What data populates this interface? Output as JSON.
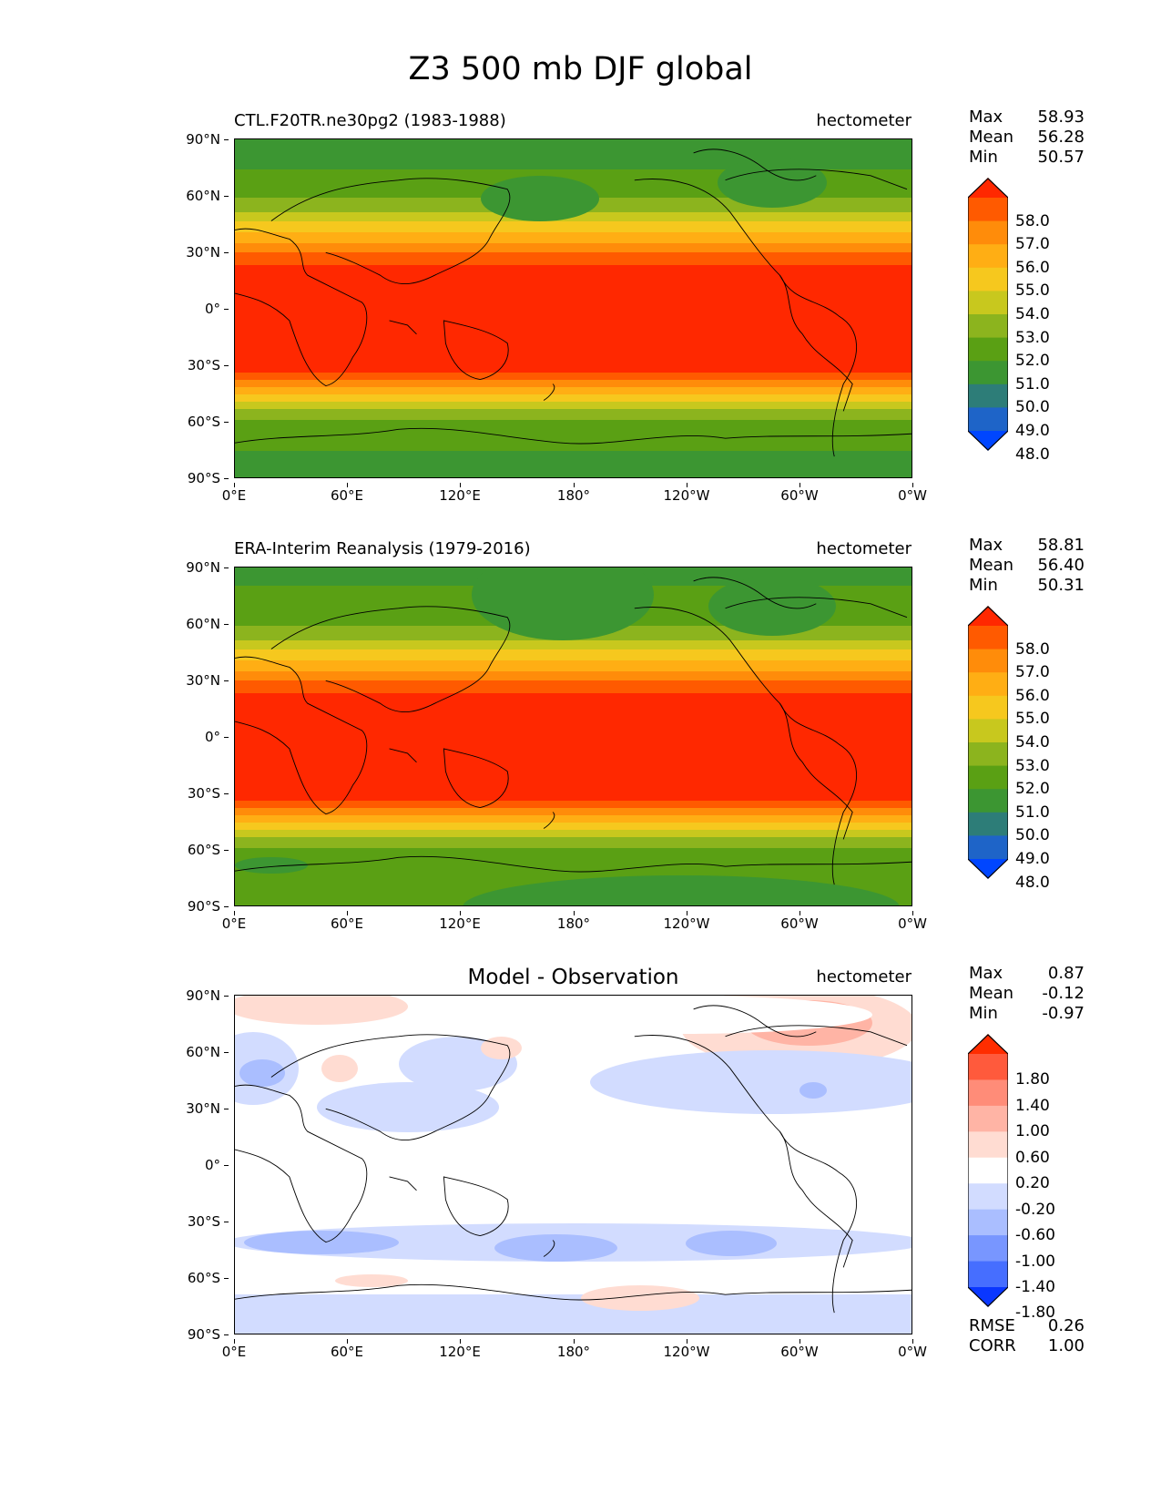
{
  "figure_title": "Z3 500 mb DJF global",
  "x_ticks": [
    "0°E",
    "60°E",
    "120°E",
    "180°",
    "120°W",
    "60°W",
    "0°W"
  ],
  "y_ticks": [
    "90°N",
    "60°N",
    "30°N",
    "0°",
    "30°S",
    "60°S",
    "90°S"
  ],
  "panels": [
    {
      "id": "model",
      "title": "CTL.F20TR.ne30pg2 (1983-1988)",
      "units": "hectometer",
      "stats": [
        {
          "label": "Max",
          "value": "58.93"
        },
        {
          "label": "Mean",
          "value": "56.28"
        },
        {
          "label": "Min",
          "value": "50.57"
        }
      ],
      "colorbar": {
        "labels": [
          "58.0",
          "57.0",
          "56.0",
          "55.0",
          "54.0",
          "53.0",
          "52.0",
          "51.0",
          "50.0",
          "49.0",
          "48.0"
        ],
        "colors": [
          "#ff2800",
          "#ff5a00",
          "#ff8c0a",
          "#ffae14",
          "#f6c81e",
          "#c8c81e",
          "#8cb41e",
          "#5aa014",
          "#3c9632",
          "#2d7d78",
          "#1e64c8",
          "#0046ff"
        ]
      }
    },
    {
      "id": "obs",
      "title": "ERA-Interim Reanalysis (1979-2016)",
      "units": "hectometer",
      "stats": [
        {
          "label": "Max",
          "value": "58.81"
        },
        {
          "label": "Mean",
          "value": "56.40"
        },
        {
          "label": "Min",
          "value": "50.31"
        }
      ],
      "colorbar": {
        "labels": [
          "58.0",
          "57.0",
          "56.0",
          "55.0",
          "54.0",
          "53.0",
          "52.0",
          "51.0",
          "50.0",
          "49.0",
          "48.0"
        ],
        "colors": [
          "#ff2800",
          "#ff5a00",
          "#ff8c0a",
          "#ffae14",
          "#f6c81e",
          "#c8c81e",
          "#8cb41e",
          "#5aa014",
          "#3c9632",
          "#2d7d78",
          "#1e64c8",
          "#0046ff"
        ]
      }
    },
    {
      "id": "diff",
      "title": "Model - Observation",
      "units": "hectometer",
      "stats": [
        {
          "label": "Max",
          "value": "0.87"
        },
        {
          "label": "Mean",
          "value": "-0.12"
        },
        {
          "label": "Min",
          "value": "-0.97"
        }
      ],
      "colorbar": {
        "labels": [
          "1.80",
          "1.40",
          "1.00",
          "0.60",
          "0.20",
          "-0.20",
          "-0.60",
          "-1.00",
          "-1.40",
          "-1.80"
        ],
        "colors": [
          "#ff2d00",
          "#ff5a3c",
          "#ff8c78",
          "#ffb4a5",
          "#ffdcd2",
          "#ffffff",
          "#d2dcff",
          "#aabeff",
          "#7896ff",
          "#466eff",
          "#0a37ff"
        ]
      },
      "metrics": [
        {
          "label": "RMSE",
          "value": "0.26"
        },
        {
          "label": "CORR",
          "value": "1.00"
        }
      ]
    }
  ],
  "chart_data": [
    {
      "type": "heatmap",
      "title": "CTL.F20TR.ne30pg2 (1983-1988)",
      "variable": "Z3 500 mb DJF",
      "units": "hectometer",
      "x_range": [
        0,
        360
      ],
      "y_range": [
        -90,
        90
      ],
      "lat_profile": [
        {
          "lat": 90,
          "value": 50.8
        },
        {
          "lat": 75,
          "value": 51.5
        },
        {
          "lat": 60,
          "value": 52.0
        },
        {
          "lat": 50,
          "value": 54.0
        },
        {
          "lat": 40,
          "value": 55.5
        },
        {
          "lat": 30,
          "value": 57.0
        },
        {
          "lat": 20,
          "value": 58.2
        },
        {
          "lat": 0,
          "value": 58.6
        },
        {
          "lat": -20,
          "value": 58.5
        },
        {
          "lat": -35,
          "value": 57.5
        },
        {
          "lat": -45,
          "value": 55.0
        },
        {
          "lat": -55,
          "value": 52.5
        },
        {
          "lat": -65,
          "value": 51.0
        },
        {
          "lat": -90,
          "value": 50.8
        }
      ],
      "max": 58.93,
      "mean": 56.28,
      "min": 50.57
    },
    {
      "type": "heatmap",
      "title": "ERA-Interim Reanalysis (1979-2016)",
      "variable": "Z3 500 mb DJF",
      "units": "hectometer",
      "x_range": [
        0,
        360
      ],
      "y_range": [
        -90,
        90
      ],
      "lat_profile": [
        {
          "lat": 90,
          "value": 50.5
        },
        {
          "lat": 75,
          "value": 51.5
        },
        {
          "lat": 60,
          "value": 52.0
        },
        {
          "lat": 50,
          "value": 54.0
        },
        {
          "lat": 40,
          "value": 55.5
        },
        {
          "lat": 30,
          "value": 57.0
        },
        {
          "lat": 20,
          "value": 58.2
        },
        {
          "lat": 0,
          "value": 58.6
        },
        {
          "lat": -20,
          "value": 58.5
        },
        {
          "lat": -35,
          "value": 57.5
        },
        {
          "lat": -45,
          "value": 55.0
        },
        {
          "lat": -55,
          "value": 52.5
        },
        {
          "lat": -65,
          "value": 51.5
        },
        {
          "lat": -90,
          "value": 51.0
        }
      ],
      "max": 58.81,
      "mean": 56.4,
      "min": 50.31
    },
    {
      "type": "heatmap",
      "title": "Model - Observation",
      "units": "hectometer",
      "x_range": [
        0,
        360
      ],
      "y_range": [
        -90,
        90
      ],
      "features": [
        {
          "region": "Arctic 0-80°E",
          "value": 0.4
        },
        {
          "region": "N. Atlantic / Greenland",
          "value": 0.6
        },
        {
          "region": "Europe",
          "value": -0.6
        },
        {
          "region": "N. Pacific 30-50°N",
          "value": -0.4
        },
        {
          "region": "Southern Ocean 45°S, 30-80°E",
          "value": -0.7
        },
        {
          "region": "Southern Ocean 45°S, 170°E-160°W",
          "value": -0.7
        },
        {
          "region": "Southern Ocean 45°S, 110-150°W",
          "value": -0.7
        },
        {
          "region": "Antarctica 70°S",
          "value": -0.4
        }
      ],
      "max": 0.87,
      "mean": -0.12,
      "min": -0.97,
      "rmse": 0.26,
      "corr": 1.0
    }
  ]
}
